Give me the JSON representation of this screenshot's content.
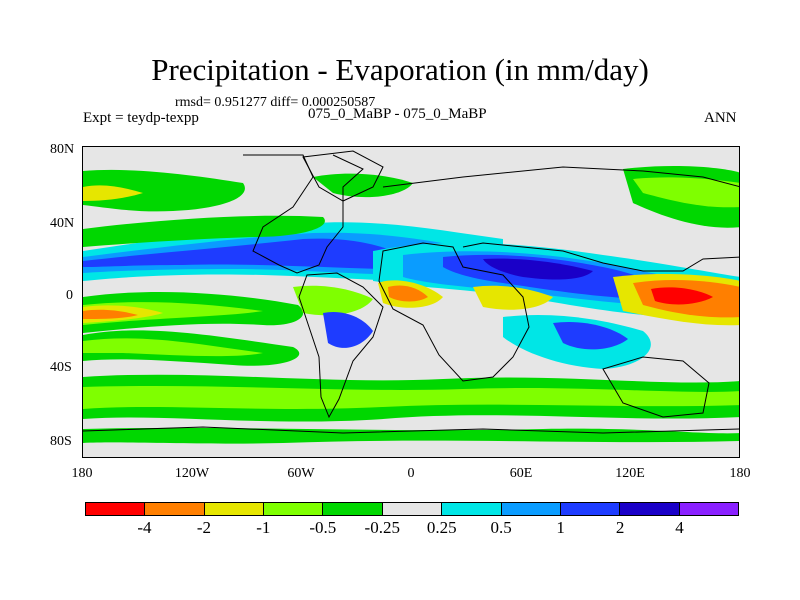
{
  "title": "Precipitation - Evaporation (in mm/day)",
  "stats": "rmsd= 0.951277 diff= 0.000250587",
  "left_label": "Expt = teydp-texpp",
  "center_label": "075_0_MaBP - 075_0_MaBP",
  "right_label": "ANN",
  "lat_ticks": [
    "80N",
    "40N",
    "0",
    "40S",
    "80S"
  ],
  "lon_ticks": [
    "180",
    "120W",
    "60W",
    "0",
    "60E",
    "120E",
    "180"
  ],
  "colorbar": {
    "labels": [
      "-4",
      "-2",
      "-1",
      "-0.5",
      "-0.25",
      "0.25",
      "0.5",
      "1",
      "2",
      "4"
    ],
    "colors": [
      "#ff0000",
      "#ff7f00",
      "#e6e600",
      "#7fff00",
      "#00d700",
      "#e6e6e6",
      "#00e6e6",
      "#0a9cff",
      "#1e3cff",
      "#1a00c8",
      "#8a20ff"
    ]
  },
  "colors": {
    "land_fill": "#e6e6e6",
    "green": "#00d700",
    "light_green": "#7fff00",
    "yellow": "#e6e600",
    "orange": "#ff7f00",
    "red": "#ff0000",
    "cyan": "#00e6e6",
    "light_blue": "#0a9cff",
    "blue": "#1e3cff",
    "dark_blue": "#1a00c8"
  }
}
